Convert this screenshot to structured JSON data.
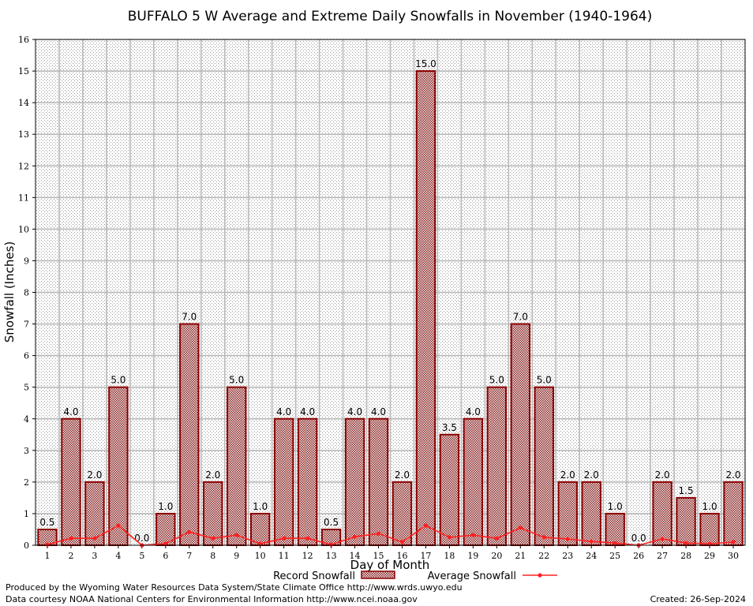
{
  "chart_data": {
    "type": "bar",
    "title": "BUFFALO 5 W Average and Extreme Daily Snowfalls in November (1940-1964)",
    "xlabel": "Day of Month",
    "ylabel": "Snowfall (Inches)",
    "ylim": [
      0,
      16
    ],
    "yticks": [
      0,
      1,
      2,
      3,
      4,
      5,
      6,
      7,
      8,
      9,
      10,
      11,
      12,
      13,
      14,
      15,
      16
    ],
    "grid": true,
    "legend_position": "bottom",
    "categories": [
      "1",
      "2",
      "3",
      "4",
      "5",
      "6",
      "7",
      "8",
      "9",
      "10",
      "11",
      "12",
      "13",
      "14",
      "15",
      "16",
      "17",
      "18",
      "19",
      "20",
      "21",
      "22",
      "23",
      "24",
      "25",
      "26",
      "27",
      "28",
      "29",
      "30"
    ],
    "series": [
      {
        "name": "Record Snowfall",
        "type": "bar",
        "values": [
          0.5,
          4.0,
          2.0,
          5.0,
          0.0,
          1.0,
          7.0,
          2.0,
          5.0,
          1.0,
          4.0,
          4.0,
          0.5,
          4.0,
          4.0,
          2.0,
          15.0,
          3.5,
          4.0,
          5.0,
          7.0,
          5.0,
          2.0,
          2.0,
          1.0,
          0.0,
          2.0,
          1.5,
          1.0,
          2.0
        ],
        "labels": [
          "0.5",
          "4.0",
          "2.0",
          "5.0",
          "0.0",
          "1.0",
          "7.0",
          "2.0",
          "5.0",
          "1.0",
          "4.0",
          "4.0",
          "0.5",
          "4.0",
          "4.0",
          "2.0",
          "15.0",
          "3.5",
          "4.0",
          "5.0",
          "7.0",
          "5.0",
          "2.0",
          "2.0",
          "1.0",
          "0.0",
          "2.0",
          "1.5",
          "1.0",
          "2.0"
        ]
      },
      {
        "name": "Average Snowfall",
        "type": "line",
        "values": [
          0.02,
          0.22,
          0.22,
          0.62,
          0.0,
          0.05,
          0.42,
          0.22,
          0.32,
          0.05,
          0.22,
          0.22,
          0.02,
          0.27,
          0.37,
          0.1,
          0.62,
          0.25,
          0.32,
          0.22,
          0.55,
          0.25,
          0.2,
          0.12,
          0.07,
          0.0,
          0.2,
          0.07,
          0.05,
          0.1
        ]
      }
    ],
    "colors": {
      "bar_stroke": "#8b0000",
      "bar_fill": "#c9a3a3",
      "line": "#ff2020",
      "grid": "#b4b4b4"
    }
  },
  "footer": {
    "producer": "Produced by the Wyoming Water Resources Data System/State Climate Office http://www.wrds.uwyo.edu",
    "source": "Data courtesy NOAA National Centers for Environmental Information http://www.ncei.noaa.gov",
    "created": "Created:  26-Sep-2024"
  }
}
